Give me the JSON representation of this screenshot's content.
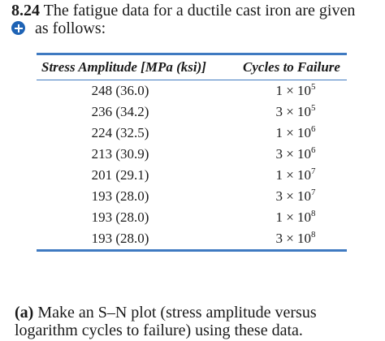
{
  "problem": {
    "number": "8.24",
    "text_line1": "The fatigue data for a ductile cast iron are given",
    "text_line2": "as follows:"
  },
  "table": {
    "headers": [
      "Stress Amplitude [MPa (ksi)]",
      "Cycles to Failure"
    ],
    "rows": [
      {
        "stress": "248 (36.0)",
        "mantissa": "1",
        "exponent": "5"
      },
      {
        "stress": "236 (34.2)",
        "mantissa": "3",
        "exponent": "5"
      },
      {
        "stress": "224 (32.5)",
        "mantissa": "1",
        "exponent": "6"
      },
      {
        "stress": "213 (30.9)",
        "mantissa": "3",
        "exponent": "6"
      },
      {
        "stress": "201 (29.1)",
        "mantissa": "1",
        "exponent": "7"
      },
      {
        "stress": "193 (28.0)",
        "mantissa": "3",
        "exponent": "7"
      },
      {
        "stress": "193 (28.0)",
        "mantissa": "1",
        "exponent": "8"
      },
      {
        "stress": "193 (28.0)",
        "mantissa": "3",
        "exponent": "8"
      }
    ]
  },
  "part_a": {
    "label": "(a)",
    "text_line1": "Make an S–N plot (stress amplitude versus",
    "text_line2": "logarithm cycles to failure) using these data."
  },
  "colors": {
    "accent": "#3f7ac1",
    "icon": "#1e63b5"
  }
}
